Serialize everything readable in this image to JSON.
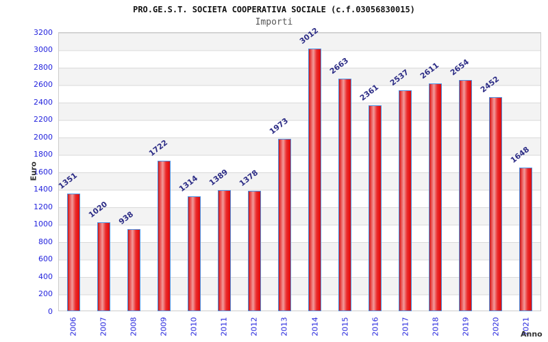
{
  "header": {
    "title": "PRO.GE.S.T. SOCIETA COOPERATIVA SOCIALE (c.f.03056830015)",
    "subtitle": "Importi"
  },
  "chart_data": {
    "type": "bar",
    "title": "PRO.GE.S.T. SOCIETA COOPERATIVA SOCIALE (c.f.03056830015)",
    "subtitle": "Importi",
    "xlabel": "Anno",
    "ylabel": "Euro",
    "categories": [
      "2006",
      "2007",
      "2008",
      "2009",
      "2010",
      "2011",
      "2012",
      "2013",
      "2014",
      "2015",
      "2016",
      "2017",
      "2018",
      "2019",
      "2020",
      "2021"
    ],
    "values": [
      1351,
      1020,
      938,
      1722,
      1314,
      1389,
      1378,
      1973,
      3012,
      2663,
      2361,
      2537,
      2611,
      2654,
      2452,
      1648
    ],
    "ylim": [
      0,
      3200
    ],
    "ytick_step": 200,
    "ytick_labels": [
      "0",
      "200",
      "400",
      "600",
      "800",
      "1000",
      "1200",
      "1400",
      "1600",
      "1800",
      "2000",
      "2200",
      "2400",
      "2600",
      "2800",
      "3000",
      "3200"
    ],
    "grid": true,
    "legend": "none",
    "colors": {
      "tick_label": "#2222dd",
      "value_label": "#2d2d86",
      "bar_border": "#4a90e2",
      "bar_red": "#e61414",
      "band_gray": "#f3f3f3",
      "gridline": "#d9d9d9",
      "plot_border": "#cccccc",
      "axis_title": "#333333",
      "title_color": "#111111",
      "subtitle_color": "#555555"
    }
  }
}
